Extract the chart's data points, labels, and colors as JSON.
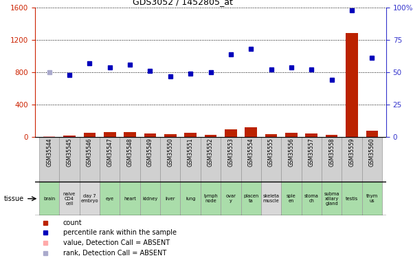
{
  "title": "GDS3052 / 1452805_at",
  "samples": [
    "GSM35544",
    "GSM35545",
    "GSM35546",
    "GSM35547",
    "GSM35548",
    "GSM35549",
    "GSM35550",
    "GSM35551",
    "GSM35552",
    "GSM35553",
    "GSM35554",
    "GSM35555",
    "GSM35556",
    "GSM35557",
    "GSM35558",
    "GSM35559",
    "GSM35560"
  ],
  "tissues": [
    "brain",
    "naive\nCD4\ncell",
    "day 7\nembryо",
    "eye",
    "heart",
    "kidney",
    "liver",
    "lung",
    "lymph\nnode",
    "ovar\ny",
    "placen\nta",
    "skeleta\nmuscle",
    "sple\nen",
    "stoma\nch",
    "subma\nxillary\ngland",
    "testis",
    "thym\nus"
  ],
  "tissue_colors": [
    "#aaddaa",
    "#d8d8d8",
    "#d8d8d8",
    "#aaddaa",
    "#aaddaa",
    "#aaddaa",
    "#aaddaa",
    "#aaddaa",
    "#aaddaa",
    "#aaddaa",
    "#aaddaa",
    "#d8d8d8",
    "#aaddaa",
    "#aaddaa",
    "#aaddaa",
    "#aaddaa",
    "#aaddaa"
  ],
  "count_values": [
    3,
    18,
    48,
    55,
    55,
    42,
    28,
    45,
    22,
    88,
    115,
    32,
    48,
    38,
    27,
    1290,
    75
  ],
  "count_absent": [
    true,
    false,
    false,
    false,
    false,
    false,
    false,
    false,
    false,
    false,
    false,
    false,
    false,
    false,
    false,
    false,
    false
  ],
  "rank_values": [
    50,
    48,
    57,
    54,
    56,
    51,
    47,
    49,
    50,
    64,
    68,
    52,
    54,
    52,
    44,
    98,
    61
  ],
  "rank_absent": [
    true,
    false,
    false,
    false,
    false,
    false,
    false,
    false,
    false,
    false,
    false,
    false,
    false,
    false,
    false,
    false,
    false
  ],
  "ylim_left": [
    0,
    1600
  ],
  "ylim_right": [
    0,
    100
  ],
  "yticks_left": [
    0,
    400,
    800,
    1200,
    1600
  ],
  "yticks_right": [
    0,
    25,
    50,
    75,
    100
  ],
  "bar_color": "#bb2200",
  "bar_absent_color": "#ffaaaa",
  "dot_color": "#0000bb",
  "dot_absent_color": "#aaaacc",
  "ylabel_left_color": "#cc2200",
  "ylabel_right_color": "#3333cc"
}
